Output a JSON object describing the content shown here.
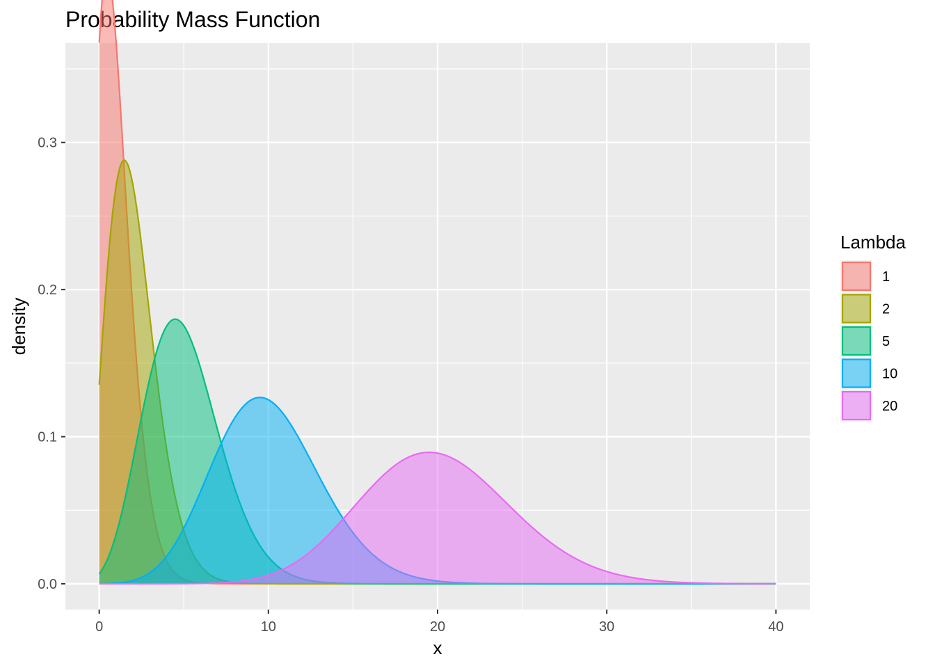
{
  "chart_data": {
    "type": "area",
    "title": "Probability Mass Function",
    "xlabel": "x",
    "ylabel": "density",
    "xlim": [
      -2,
      42
    ],
    "ylim": [
      -0.0175,
      0.3675
    ],
    "x_ticks": [
      0,
      10,
      20,
      30,
      40
    ],
    "y_ticks": [
      0.0,
      0.1,
      0.2,
      0.3
    ],
    "x_tick_labels": [
      "0",
      "10",
      "20",
      "30",
      "40"
    ],
    "y_tick_labels": [
      "0.0",
      "0.1",
      "0.2",
      "0.3"
    ],
    "x_minor": [
      5,
      15,
      25,
      35
    ],
    "y_minor": [
      0.05,
      0.15,
      0.25,
      0.35
    ],
    "grid": true,
    "legend": {
      "title": "Lambda",
      "position": "right"
    },
    "x_range": [
      0,
      40
    ],
    "series": [
      {
        "name": "1",
        "lambda": 1,
        "color": "#F8766D"
      },
      {
        "name": "2",
        "lambda": 2,
        "color": "#A3A500"
      },
      {
        "name": "5",
        "lambda": 5,
        "color": "#00BF7D"
      },
      {
        "name": "10",
        "lambda": 10,
        "color": "#00B0F6"
      },
      {
        "name": "20",
        "lambda": 20,
        "color": "#E76BF3"
      }
    ]
  }
}
